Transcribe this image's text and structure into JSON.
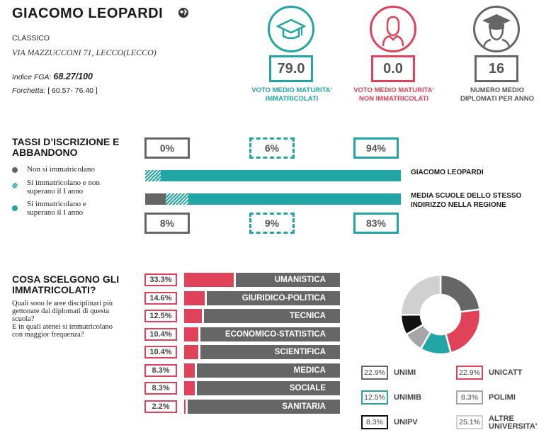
{
  "header": {
    "school_name": "GIACOMO LEOPARDI",
    "globe_icon": "globe-icon",
    "school_type": "CLASSICO",
    "address": "VIA MAZZUCCONI 71, LECCO(LECCO)",
    "fga_label": "Indice FGA:",
    "fga_value": "68.27/100",
    "range_label": "Forchetta:",
    "range_value": "[ 60.57- 76.40 ]"
  },
  "stats": [
    {
      "value": "79.0",
      "label_1": "VOTO MEDIO MATURITA'",
      "label_2": "IMMATRICOLATI",
      "color": "#22a5a5",
      "icon": "graduation-cap-icon"
    },
    {
      "value": "0.0",
      "label_1": "VOTO MEDIO MATURITA'",
      "label_2": "NON IMMATRICOLATI",
      "color": "#e0425a",
      "icon": "person-icon"
    },
    {
      "value": "16",
      "label_1": "NUMERO MEDIO",
      "label_2": "DIPLOMATI PER ANNO",
      "color": "#666666",
      "icon": "graduate-person-icon"
    }
  ],
  "enrollment": {
    "title_1": "TASSI D’ISCRIZIONE E",
    "title_2": "ABBANDONO",
    "legend": [
      {
        "line_1": "Non si immatricolano",
        "line_2": "",
        "color": "#666666"
      },
      {
        "line_1": "Si immatricolano e non",
        "line_2": "superano il I anno",
        "color": "#22a5a5"
      },
      {
        "line_1": "Si immatricolano e",
        "line_2": "superano il I anno",
        "color": "#22a5a5"
      }
    ],
    "school_label": "GIACOMO LEOPARDI",
    "region_label_1": "MEDIA SCUOLE DELLO STESSO",
    "region_label_2": "INDIRIZZO NELLA REGIONE",
    "school": {
      "not_enrolled": "0%",
      "dropout": "6%",
      "pass": "94%",
      "values": [
        0,
        6,
        94
      ]
    },
    "region": {
      "not_enrolled": "8%",
      "dropout": "9%",
      "pass": "83%",
      "values": [
        8,
        9,
        83
      ]
    }
  },
  "areas": {
    "title_1": "COSA SCELGONO GLI",
    "title_2": "IMMATRICOLATI?",
    "question_lines": [
      "Quali sono le aree disciplinari più",
      "gettonate dai diplomati di questa",
      "scuola?",
      "E in quali atenei si immatricolano",
      "con maggior frequenza?"
    ],
    "items": [
      {
        "pct": "33.3%",
        "value": 33.3,
        "name": "UMANISTICA"
      },
      {
        "pct": "14.6%",
        "value": 14.6,
        "name": "GIURIDICO-POLITICA"
      },
      {
        "pct": "12.5%",
        "value": 12.5,
        "name": "TECNICA"
      },
      {
        "pct": "10.4%",
        "value": 10.4,
        "name": "ECONOMICO-STATISTICA"
      },
      {
        "pct": "10.4%",
        "value": 10.4,
        "name": "SCIENTIFICA"
      },
      {
        "pct": "8.3%",
        "value": 8.3,
        "name": "MEDICA"
      },
      {
        "pct": "8.3%",
        "value": 8.3,
        "name": "SOCIALE"
      },
      {
        "pct": "2.2%",
        "value": 2.2,
        "name": "SANITARIA"
      }
    ]
  },
  "universities": [
    {
      "pct": "22.9%",
      "value": 22.9,
      "name_1": "UNIMI",
      "name_2": "",
      "color": "#666666"
    },
    {
      "pct": "22.9%",
      "value": 22.9,
      "name_1": "UNICATT",
      "name_2": "",
      "color": "#e0425a"
    },
    {
      "pct": "12.5%",
      "value": 12.5,
      "name_1": "UNIMIB",
      "name_2": "",
      "color": "#22a5a5"
    },
    {
      "pct": "8.3%",
      "value": 8.3,
      "name_1": "POLIMI",
      "name_2": "",
      "color": "#a6a6a6"
    },
    {
      "pct": "8.3%",
      "value": 8.3,
      "name_1": "UNIPV",
      "name_2": "",
      "color": "#111111"
    },
    {
      "pct": "25.1%",
      "value": 25.1,
      "name_1": "ALTRE",
      "name_2": "UNIVERSITA'",
      "color": "#d0d0d0"
    }
  ]
}
